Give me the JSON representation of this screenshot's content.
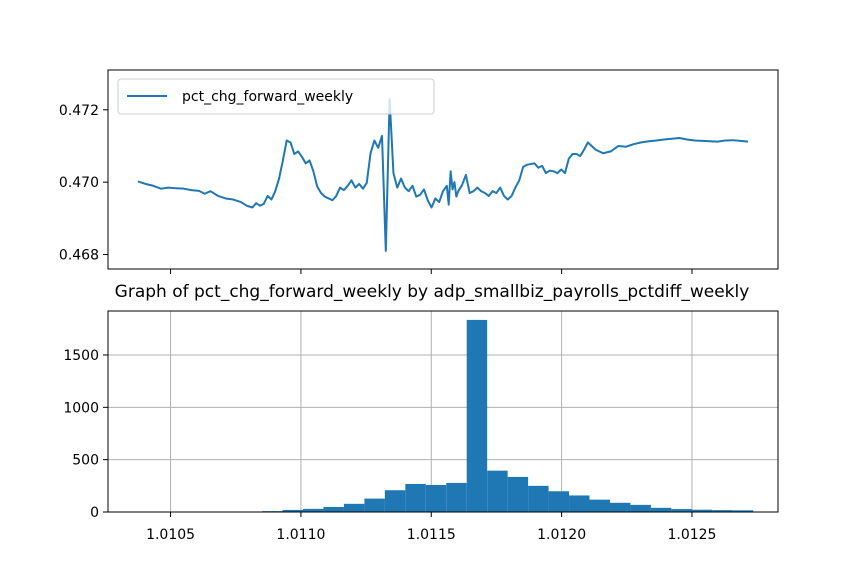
{
  "chart_data": [
    {
      "type": "line",
      "title": "",
      "xlabel": "",
      "ylabel": "",
      "ylim": [
        0.4676,
        0.4731
      ],
      "yticks": [
        "0.468",
        "0.470",
        "0.472"
      ],
      "ytick_values": [
        0.468,
        0.47,
        0.472
      ],
      "grid": false,
      "legend_position": "top-left",
      "series": [
        {
          "name": "pct_chg_forward_weekly",
          "color": "#1f77b4",
          "x": [
            0,
            4,
            8,
            12,
            16,
            20,
            24,
            28,
            32,
            35,
            38,
            42,
            46,
            50,
            54,
            57,
            60,
            62,
            64,
            66,
            68,
            70,
            72,
            74,
            76,
            78,
            80,
            82,
            84,
            86,
            88,
            90,
            92,
            94,
            96,
            98,
            100,
            102,
            104,
            106,
            108,
            110,
            112,
            114,
            116,
            118,
            120,
            122,
            124,
            126,
            128,
            130,
            132,
            134,
            136,
            138,
            140,
            142,
            144,
            146,
            148,
            150,
            152,
            154,
            156,
            158,
            160,
            162,
            163,
            164,
            165,
            166,
            167,
            168,
            170,
            172,
            174,
            176,
            178,
            180,
            182,
            184,
            186,
            188,
            190,
            192,
            194,
            196,
            198,
            200,
            202,
            204,
            206,
            208,
            210,
            212,
            214,
            216,
            218,
            220,
            222,
            224,
            226,
            228,
            230,
            232,
            234,
            236,
            240,
            244,
            248,
            252,
            256,
            260,
            264,
            268,
            272,
            276,
            280,
            284,
            288,
            292,
            296,
            300,
            304,
            308,
            312,
            316,
            320
          ],
          "y": [
            0.47002,
            0.46995,
            0.4699,
            0.46982,
            0.46985,
            0.46983,
            0.46982,
            0.46978,
            0.46976,
            0.46968,
            0.46975,
            0.46962,
            0.46955,
            0.46952,
            0.46945,
            0.46935,
            0.4693,
            0.46942,
            0.46935,
            0.4694,
            0.46962,
            0.46952,
            0.46975,
            0.4701,
            0.4706,
            0.47115,
            0.4711,
            0.47078,
            0.47085,
            0.4707,
            0.47052,
            0.4706,
            0.4703,
            0.46988,
            0.4697,
            0.4696,
            0.46955,
            0.4695,
            0.46962,
            0.46985,
            0.46978,
            0.4699,
            0.47005,
            0.46985,
            0.46995,
            0.46982,
            0.46998,
            0.4708,
            0.47115,
            0.47095,
            0.47128,
            0.4681,
            0.4723,
            0.47025,
            0.46985,
            0.4701,
            0.46985,
            0.46975,
            0.4699,
            0.4696,
            0.46965,
            0.4698,
            0.4695,
            0.4693,
            0.46955,
            0.46945,
            0.46975,
            0.4699,
            0.46938,
            0.4703,
            0.4698,
            0.47,
            0.4696,
            0.46975,
            0.46992,
            0.4702,
            0.4697,
            0.46975,
            0.46985,
            0.46975,
            0.4697,
            0.46962,
            0.46975,
            0.4697,
            0.46985,
            0.46962,
            0.46952,
            0.46962,
            0.46985,
            0.47005,
            0.47042,
            0.47048,
            0.4705,
            0.47052,
            0.4704,
            0.47045,
            0.47025,
            0.47032,
            0.4703,
            0.47025,
            0.47035,
            0.47025,
            0.47065,
            0.47078,
            0.47078,
            0.47072,
            0.4709,
            0.4711,
            0.4709,
            0.4708,
            0.47085,
            0.471,
            0.47098,
            0.47105,
            0.4711,
            0.47113,
            0.47115,
            0.47118,
            0.4712,
            0.47122,
            0.47118,
            0.47115,
            0.47114,
            0.47113,
            0.47112,
            0.47115,
            0.47116,
            0.47114,
            0.47112
          ]
        }
      ]
    },
    {
      "type": "bar",
      "title": "Graph of pct_chg_forward_weekly by adp_smallbiz_payrolls_pctdiff_weekly",
      "xlabel": "",
      "ylabel": "",
      "xlim": [
        1.01026,
        1.01283
      ],
      "ylim": [
        0,
        1920
      ],
      "xticks": [
        "1.0105",
        "1.0110",
        "1.0115",
        "1.0120",
        "1.0125"
      ],
      "xtick_values": [
        1.0105,
        1.011,
        1.0115,
        1.012,
        1.0125
      ],
      "yticks": [
        "0",
        "500",
        "1000",
        "1500"
      ],
      "ytick_values": [
        0,
        500,
        1000,
        1500
      ],
      "grid": true,
      "color": "#1f77b4",
      "bin_edges": [
        1.01038,
        1.0104585,
        1.010537,
        1.0106155,
        1.010694,
        1.0107725,
        1.010851,
        1.0109295,
        1.011008,
        1.0110865,
        1.011165,
        1.0112435,
        1.011322,
        1.0114005,
        1.011479,
        1.0115575,
        1.011636,
        1.0117145,
        1.011793,
        1.0118715,
        1.01195,
        1.0120285,
        1.012107,
        1.0121855,
        1.012264,
        1.0123425,
        1.012421,
        1.0124995,
        1.012578,
        1.0126565,
        1.012735
      ],
      "values": [
        0,
        0,
        0,
        0,
        0,
        2,
        8,
        20,
        30,
        48,
        78,
        128,
        208,
        268,
        258,
        278,
        1835,
        395,
        335,
        250,
        198,
        158,
        118,
        88,
        68,
        40,
        28,
        22,
        18,
        16
      ]
    }
  ]
}
